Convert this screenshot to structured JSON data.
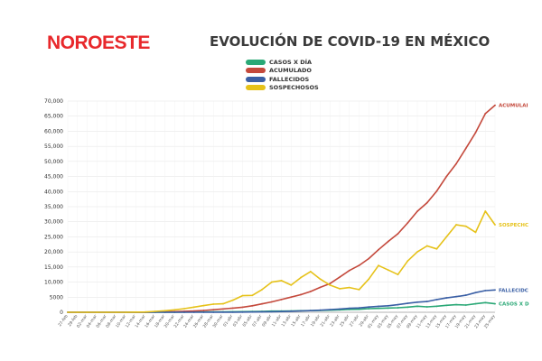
{
  "header": {
    "logo_text": "NOROESTE",
    "title": "EVOLUCIÓN DE COVID-19 EN MÉXICO"
  },
  "chart_data": {
    "type": "line",
    "title": "EVOLUCIÓN DE COVID-19 EN MÉXICO",
    "xlabel": "",
    "ylabel": "",
    "ylim": [
      0,
      70000
    ],
    "yticks": [
      "0",
      "5000",
      "10,000",
      "15,000",
      "20,000",
      "25,000",
      "30,000",
      "35,000",
      "40,000",
      "45,000",
      "50,000",
      "55,000",
      "60,000",
      "65,000",
      "70,000"
    ],
    "grid": true,
    "legend_position": "top",
    "categories": [
      "27-feb",
      "29-feb",
      "02-mar",
      "04-mar",
      "06-mar",
      "08-mar",
      "10-mar",
      "12-mar",
      "14-mar",
      "16-mar",
      "18-mar",
      "20-mar",
      "22-mar",
      "24-mar",
      "26-mar",
      "28-mar",
      "30-mar",
      "01-abr",
      "03-abr",
      "05-abr",
      "07-abr",
      "09-abr",
      "11-abr",
      "13-abr",
      "15-abr",
      "17-abr",
      "19-abr",
      "21-abr",
      "23-abr",
      "25-abr",
      "27-abr",
      "29-abr",
      "01-may",
      "03-may",
      "05-may",
      "07-may",
      "09-may",
      "11-may",
      "13-may",
      "15-may",
      "17-may",
      "19-may",
      "21-may",
      "23-may",
      "25-may"
    ],
    "series": [
      {
        "name": "CASOS X DÍA",
        "color": "#2aa876",
        "end_label": "CASOS X D",
        "values": [
          0,
          0,
          0,
          0,
          0,
          0,
          0,
          1,
          6,
          10,
          20,
          40,
          50,
          80,
          90,
          150,
          150,
          170,
          200,
          250,
          300,
          380,
          400,
          450,
          500,
          550,
          600,
          700,
          800,
          950,
          1000,
          1200,
          1300,
          1400,
          1500,
          1700,
          2000,
          1800,
          2000,
          2300,
          2500,
          2400,
          2800,
          3200,
          2800
        ]
      },
      {
        "name": "ACUMULADO",
        "color": "#c4493c",
        "end_label": "ACUMULAI",
        "values": [
          1,
          4,
          5,
          5,
          7,
          7,
          7,
          12,
          26,
          82,
          118,
          203,
          316,
          405,
          585,
          848,
          1094,
          1378,
          1688,
          2143,
          2785,
          3441,
          4219,
          5014,
          5847,
          6875,
          8261,
          9501,
          11633,
          13842,
          15529,
          17799,
          20739,
          23471,
          26025,
          29616,
          33460,
          36327,
          40186,
          45032,
          49219,
          54346,
          59567,
          65856,
          68620
        ]
      },
      {
        "name": "FALLECIDOS",
        "color": "#3a5fa5",
        "end_label": "FALLECIDC",
        "values": [
          0,
          0,
          0,
          0,
          0,
          0,
          0,
          0,
          0,
          0,
          0,
          2,
          2,
          5,
          8,
          16,
          28,
          37,
          50,
          79,
          125,
          194,
          233,
          332,
          449,
          546,
          686,
          857,
          1069,
          1305,
          1434,
          1732,
          1972,
          2154,
          2507,
          2961,
          3353,
          3573,
          4220,
          4767,
          5177,
          5666,
          6510,
          7179,
          7394
        ]
      },
      {
        "name": "SOSPECHOSOS",
        "color": "#e6c21a",
        "end_label": "SOSPECHC",
        "values": [
          0,
          0,
          0,
          0,
          0,
          0,
          0,
          50,
          100,
          300,
          500,
          800,
          1200,
          1700,
          2200,
          2700,
          2800,
          4000,
          5500,
          5600,
          7500,
          10000,
          10500,
          9000,
          11500,
          13500,
          11000,
          9000,
          7800,
          8200,
          7500,
          11000,
          15500,
          14000,
          12500,
          17000,
          20000,
          22000,
          21000,
          25000,
          29000,
          28500,
          26500,
          33500,
          29000
        ]
      }
    ]
  }
}
